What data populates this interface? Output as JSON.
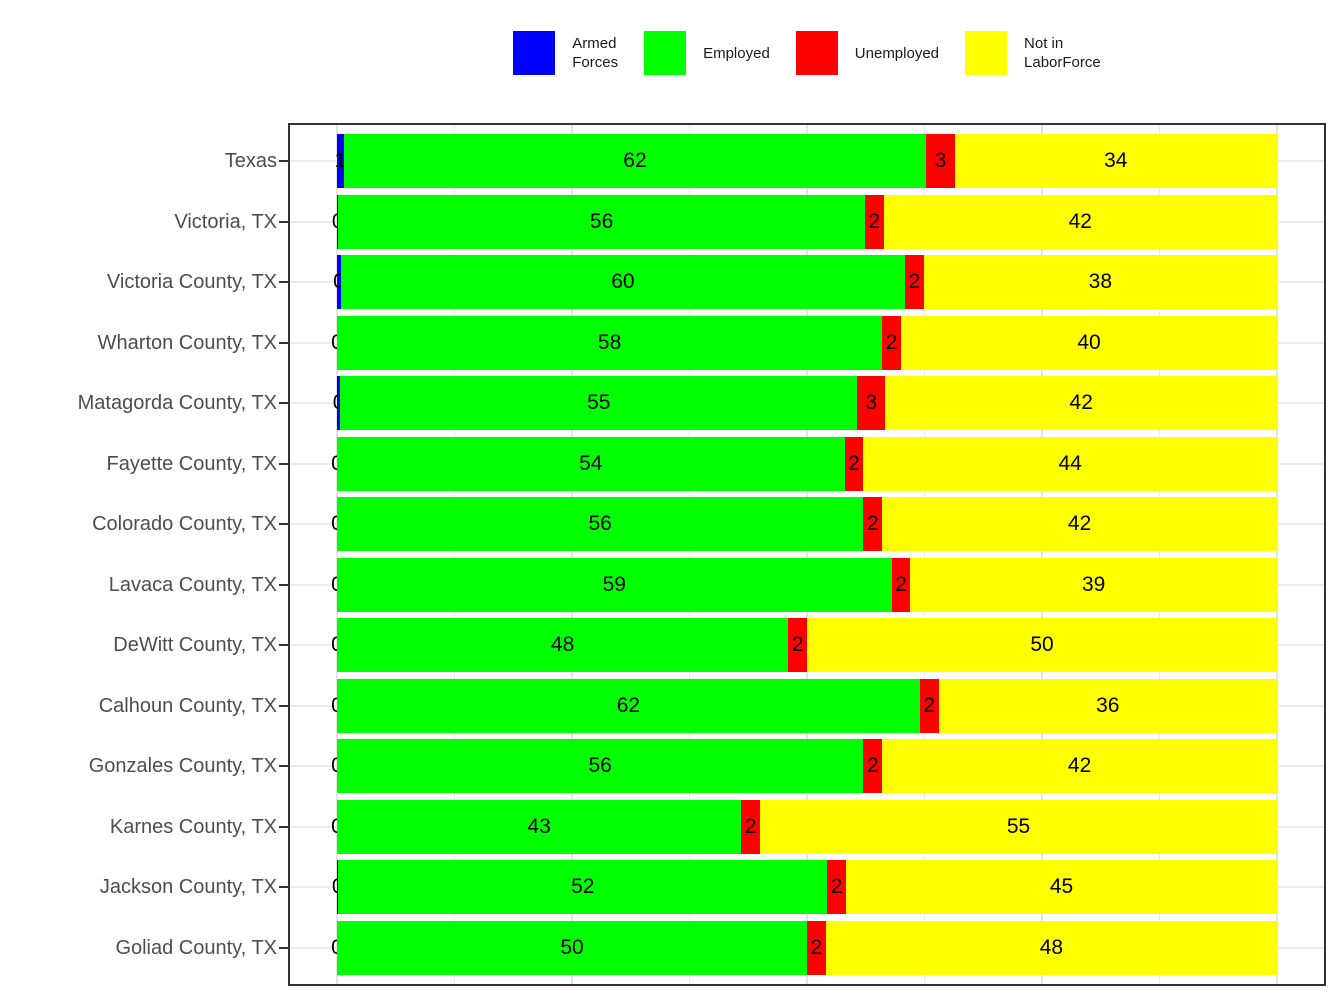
{
  "legend": {
    "items": [
      {
        "id": "armed-forces",
        "label": "Armed\nForces",
        "color": "#0000FF"
      },
      {
        "id": "employed",
        "label": "Employed",
        "color": "#00FF00"
      },
      {
        "id": "unemployed",
        "label": "Unemployed",
        "color": "#FF0000"
      },
      {
        "id": "not-in-laborforce",
        "label": "Not in\nLaborForce",
        "color": "#FFFF00"
      }
    ]
  },
  "chart_data": {
    "type": "bar",
    "orientation": "horizontal",
    "stacked": true,
    "title": "",
    "xlabel": "",
    "ylabel": "",
    "xlim": [
      0,
      100
    ],
    "gridline_step": 12.5,
    "x_axis_labels_shown": false,
    "value_labels_shown": true,
    "categories": [
      "Texas",
      "Victoria, TX",
      "Victoria County, TX",
      "Wharton County, TX",
      "Matagorda County, TX",
      "Fayette County, TX",
      "Colorado County, TX",
      "Lavaca County, TX",
      "DeWitt County, TX",
      "Calhoun County, TX",
      "Gonzales County, TX",
      "Karnes County, TX",
      "Jackson County, TX",
      "Goliad County, TX"
    ],
    "series": [
      {
        "name": "Armed Forces",
        "color": "#0000FF",
        "values": [
          1,
          0,
          0,
          0,
          0,
          0,
          0,
          0,
          0,
          0,
          0,
          0,
          0,
          0
        ]
      },
      {
        "name": "Employed",
        "color": "#00FF00",
        "values": [
          62,
          56,
          60,
          58,
          55,
          54,
          56,
          59,
          48,
          62,
          56,
          43,
          52,
          50
        ]
      },
      {
        "name": "Unemployed",
        "color": "#FF0000",
        "values": [
          3,
          2,
          2,
          2,
          3,
          2,
          2,
          2,
          2,
          2,
          2,
          2,
          2,
          2
        ]
      },
      {
        "name": "Not in LaborForce",
        "color": "#FFFF00",
        "values": [
          34,
          42,
          38,
          40,
          42,
          44,
          42,
          39,
          50,
          36,
          42,
          55,
          45,
          48
        ]
      }
    ],
    "armed_forces_visual_widths": [
      0.7,
      0.15,
      0.42,
      0,
      0.35,
      0,
      0,
      0,
      0,
      0,
      0,
      0,
      0.15,
      0
    ],
    "colors": {
      "panel_border": "#333333",
      "grid": "#ebebeb",
      "background": "#ffffff",
      "axis_text": "#4d4d4d",
      "value_text": "#000000"
    }
  }
}
